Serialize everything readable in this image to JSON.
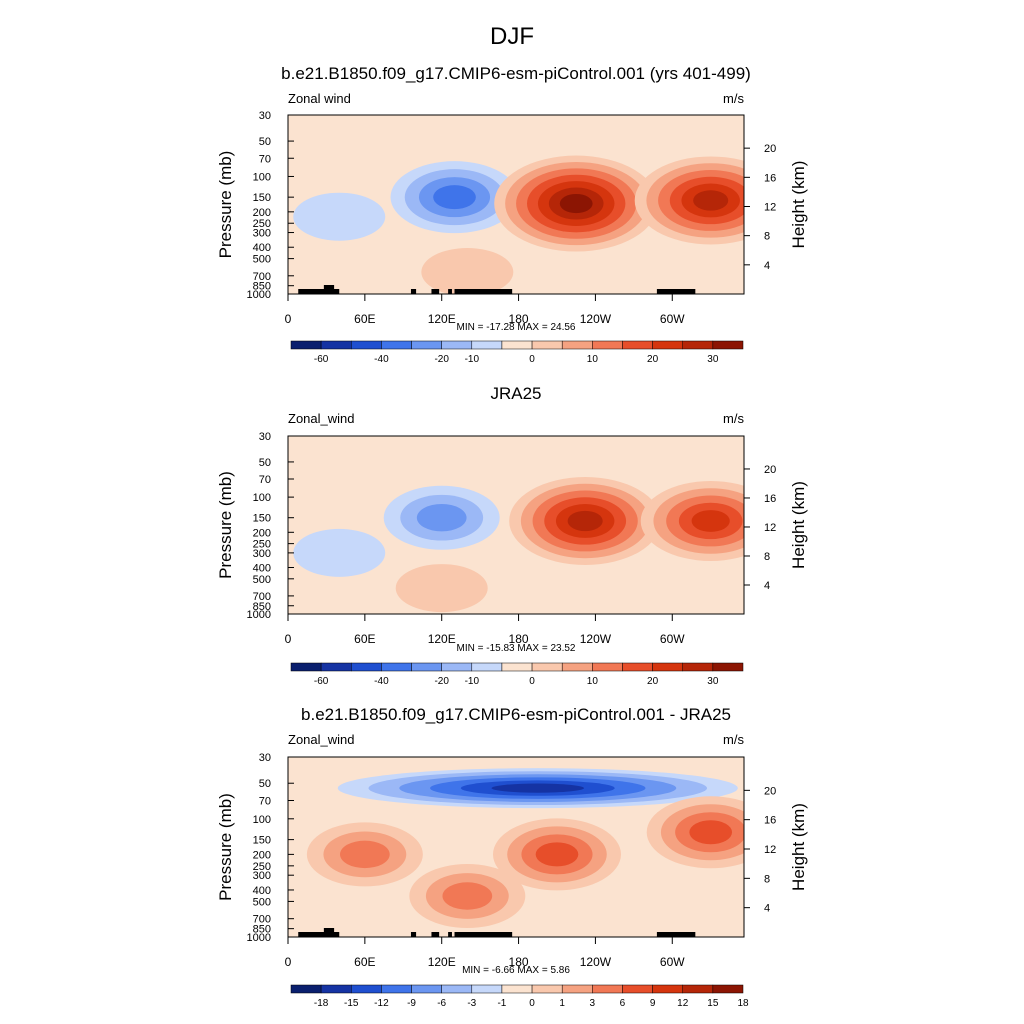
{
  "figure": {
    "title": "DJF"
  },
  "colors": {
    "abs_scale": [
      "#0a1f6e",
      "#1533a3",
      "#1f4fd0",
      "#3f74ea",
      "#6b96f1",
      "#9bb8f6",
      "#c6d8fa",
      "#fbe3d0",
      "#f9c8ad",
      "#f5a281",
      "#f17855",
      "#e74e2a",
      "#d5350e",
      "#b52608",
      "#8c1503"
    ],
    "diff_scale": [
      "#0a1f6e",
      "#1533a3",
      "#1f4fd0",
      "#3f74ea",
      "#6b96f1",
      "#9bb8f6",
      "#c6d8fa",
      "#fbe3d0",
      "#f9c8ad",
      "#f5a281",
      "#f17855",
      "#e74e2a",
      "#d5350e",
      "#b52608",
      "#8c1503"
    ],
    "topography": "#000000"
  },
  "chart_data": [
    {
      "type": "heatmap",
      "title": "b.e21.B1850.f09_g17.CMIP6-esm-piControl.001 (yrs 401-499)",
      "left_label": "Zonal wind",
      "right_label": "m/s",
      "ylabel": "Pressure (mb)",
      "ylabel_right": "Height (km)",
      "x_ticks": [
        "0",
        "60E",
        "120E",
        "180",
        "120W",
        "60W"
      ],
      "x_tick_values": [
        0,
        60,
        120,
        180,
        240,
        300
      ],
      "xlim": [
        0,
        356
      ],
      "y_ticks": [
        "30",
        "50",
        "70",
        "100",
        "150",
        "200",
        "250",
        "300",
        "400",
        "500",
        "700",
        "850",
        "1000"
      ],
      "y_tick_values": [
        30,
        50,
        70,
        100,
        150,
        200,
        250,
        300,
        400,
        500,
        700,
        850,
        1000
      ],
      "ylim": [
        1000,
        30
      ],
      "height_ticks": [
        "4",
        "8",
        "12",
        "16",
        "20"
      ],
      "height_tick_values": [
        4,
        8,
        12,
        16,
        20
      ],
      "stats": "MIN = -17.28  MAX =  24.56",
      "colorbar_labels": [
        "-60",
        "-40",
        "-20",
        "-10",
        "0",
        "10",
        "20",
        "30"
      ],
      "colorbar_label_at_boxes": [
        1,
        3,
        5,
        6,
        8,
        10,
        12,
        14
      ],
      "topography": true,
      "features": [
        {
          "lon": 130,
          "p": 150,
          "value": -14
        },
        {
          "lon": 225,
          "p": 170,
          "value": 24.56
        },
        {
          "lon": 330,
          "p": 160,
          "value": 22
        },
        {
          "lon": 40,
          "p": 220,
          "value": -4
        },
        {
          "lon": 140,
          "p": 650,
          "value": 4
        }
      ]
    },
    {
      "type": "heatmap",
      "title": "JRA25",
      "left_label": "Zonal_wind",
      "right_label": "m/s",
      "ylabel": "Pressure (mb)",
      "ylabel_right": "Height (km)",
      "x_ticks": [
        "0",
        "60E",
        "120E",
        "180",
        "120W",
        "60W"
      ],
      "x_tick_values": [
        0,
        60,
        120,
        180,
        240,
        300
      ],
      "xlim": [
        0,
        356
      ],
      "y_ticks": [
        "30",
        "50",
        "70",
        "100",
        "150",
        "200",
        "250",
        "300",
        "400",
        "500",
        "700",
        "850",
        "1000"
      ],
      "y_tick_values": [
        30,
        50,
        70,
        100,
        150,
        200,
        250,
        300,
        400,
        500,
        700,
        850,
        1000
      ],
      "ylim": [
        1000,
        30
      ],
      "height_ticks": [
        "4",
        "8",
        "12",
        "16",
        "20"
      ],
      "height_tick_values": [
        4,
        8,
        12,
        16,
        20
      ],
      "stats": "MIN = -15.83  MAX =  23.52",
      "colorbar_labels": [
        "-60",
        "-40",
        "-20",
        "-10",
        "0",
        "10",
        "20",
        "30"
      ],
      "colorbar_label_at_boxes": [
        1,
        3,
        5,
        6,
        8,
        10,
        12,
        14
      ],
      "topography": false,
      "features": [
        {
          "lon": 120,
          "p": 150,
          "value": -12
        },
        {
          "lon": 232,
          "p": 160,
          "value": 23.52
        },
        {
          "lon": 330,
          "p": 160,
          "value": 18
        },
        {
          "lon": 40,
          "p": 300,
          "value": -4
        },
        {
          "lon": 120,
          "p": 600,
          "value": 3
        }
      ]
    },
    {
      "type": "heatmap",
      "title": "b.e21.B1850.f09_g17.CMIP6-esm-piControl.001 - JRA25",
      "left_label": "Zonal_wind",
      "right_label": "m/s",
      "ylabel": "Pressure (mb)",
      "ylabel_right": "Height (km)",
      "x_ticks": [
        "0",
        "60E",
        "120E",
        "180",
        "120W",
        "60W"
      ],
      "x_tick_values": [
        0,
        60,
        120,
        180,
        240,
        300
      ],
      "xlim": [
        0,
        356
      ],
      "y_ticks": [
        "30",
        "50",
        "70",
        "100",
        "150",
        "200",
        "250",
        "300",
        "400",
        "500",
        "700",
        "850",
        "1000"
      ],
      "y_tick_values": [
        30,
        50,
        70,
        100,
        150,
        200,
        250,
        300,
        400,
        500,
        700,
        850,
        1000
      ],
      "ylim": [
        1000,
        30
      ],
      "height_ticks": [
        "4",
        "8",
        "12",
        "16",
        "20"
      ],
      "height_tick_values": [
        4,
        8,
        12,
        16,
        20
      ],
      "stats": "MIN =  -6.66  MAX =   5.86",
      "colorbar_labels": [
        "-18",
        "-15",
        "-12",
        "-9",
        "-6",
        "-3",
        "-1",
        "0",
        "1",
        "3",
        "6",
        "9",
        "12",
        "15",
        "18"
      ],
      "colorbar_label_at_boxes": [
        1,
        2,
        3,
        4,
        5,
        6,
        7,
        8,
        9,
        10,
        11,
        12,
        13,
        14,
        15
      ],
      "topography": true,
      "features": [
        {
          "lon": 195,
          "p": 55,
          "value": -6.66
        },
        {
          "lon": 210,
          "p": 200,
          "value": 4
        },
        {
          "lon": 330,
          "p": 130,
          "value": 4
        },
        {
          "lon": 60,
          "p": 200,
          "value": 3
        },
        {
          "lon": 140,
          "p": 450,
          "value": 3
        }
      ]
    }
  ]
}
